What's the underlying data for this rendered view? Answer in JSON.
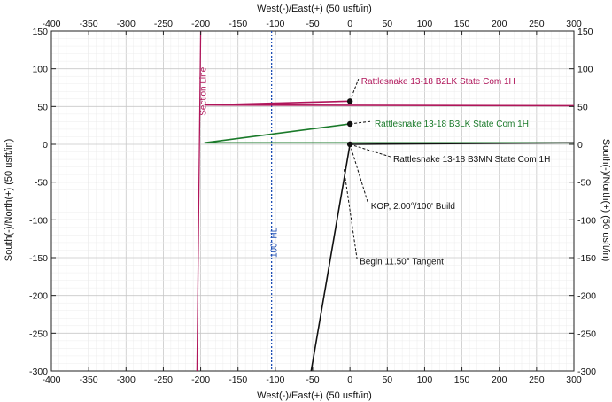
{
  "chart_data": {
    "type": "line",
    "xlabel": "West(-)/East(+) (50 usft/in)",
    "ylabel": "South(-)/North(+) (50 usft/in)",
    "xlim": [
      -400,
      300
    ],
    "ylim": [
      -300,
      150
    ],
    "xticks": [
      "-400",
      "-350",
      "-300",
      "-250",
      "-200",
      "-150",
      "-100",
      "-50",
      "0",
      "50",
      "100",
      "150",
      "200",
      "250",
      "300"
    ],
    "yticks": [
      "150",
      "100",
      "50",
      "0",
      "-50",
      "-100",
      "-150",
      "-200",
      "-250",
      "-300"
    ],
    "grid": true,
    "series": [
      {
        "name": "Rattlesnake 13-18 B2LK State Com 1H",
        "color": "#b0155a",
        "x": [
          0,
          -195,
          300
        ],
        "y": [
          57,
          52,
          51
        ]
      },
      {
        "name": "Rattlesnake 13-18 B3LK State Com 1H",
        "color": "#1a7a2a",
        "x": [
          0,
          -195,
          300
        ],
        "y": [
          27,
          2,
          2
        ]
      },
      {
        "name": "Rattlesnake 13-18 B3MN State Com 1H",
        "color": "#111111",
        "x": [
          -52,
          0,
          300
        ],
        "y": [
          -300,
          0,
          2
        ]
      }
    ],
    "reference_lines": [
      {
        "label": "Section Line",
        "color": "#b0155a",
        "x": [
          -200,
          -205
        ],
        "y": [
          150,
          -300
        ]
      },
      {
        "label": "100' HL",
        "color": "#1f4fb5",
        "x": [
          -105,
          -105
        ],
        "y": [
          150,
          -300
        ],
        "dashed": true
      }
    ],
    "annotations": [
      {
        "text": "Rattlesnake 13-18 B2LK State Com 1H",
        "color": "#b0155a",
        "x": 0,
        "y": 57,
        "tx": 15,
        "ty": 83
      },
      {
        "text": "Rattlesnake 13-18 B3LK State Com 1H",
        "color": "#1a7a2a",
        "x": 0,
        "y": 27,
        "tx": 33,
        "ty": 27
      },
      {
        "text": "Rattlesnake 13-18 B3MN State Com 1H",
        "color": "#111111",
        "x": 0,
        "y": 0,
        "tx": 58,
        "ty": -20
      },
      {
        "text": "KOP, 2.00°/100' Build",
        "color": "#111111",
        "x": 0,
        "y": 0,
        "tx": 28,
        "ty": -82
      },
      {
        "text": "Begin 11.50° Tangent",
        "color": "#111111",
        "x": -8,
        "y": -33,
        "tx": 13,
        "ty": -155
      }
    ],
    "markers": [
      {
        "x": 0,
        "y": 57
      },
      {
        "x": 0,
        "y": 27
      },
      {
        "x": 0,
        "y": 0
      }
    ]
  }
}
